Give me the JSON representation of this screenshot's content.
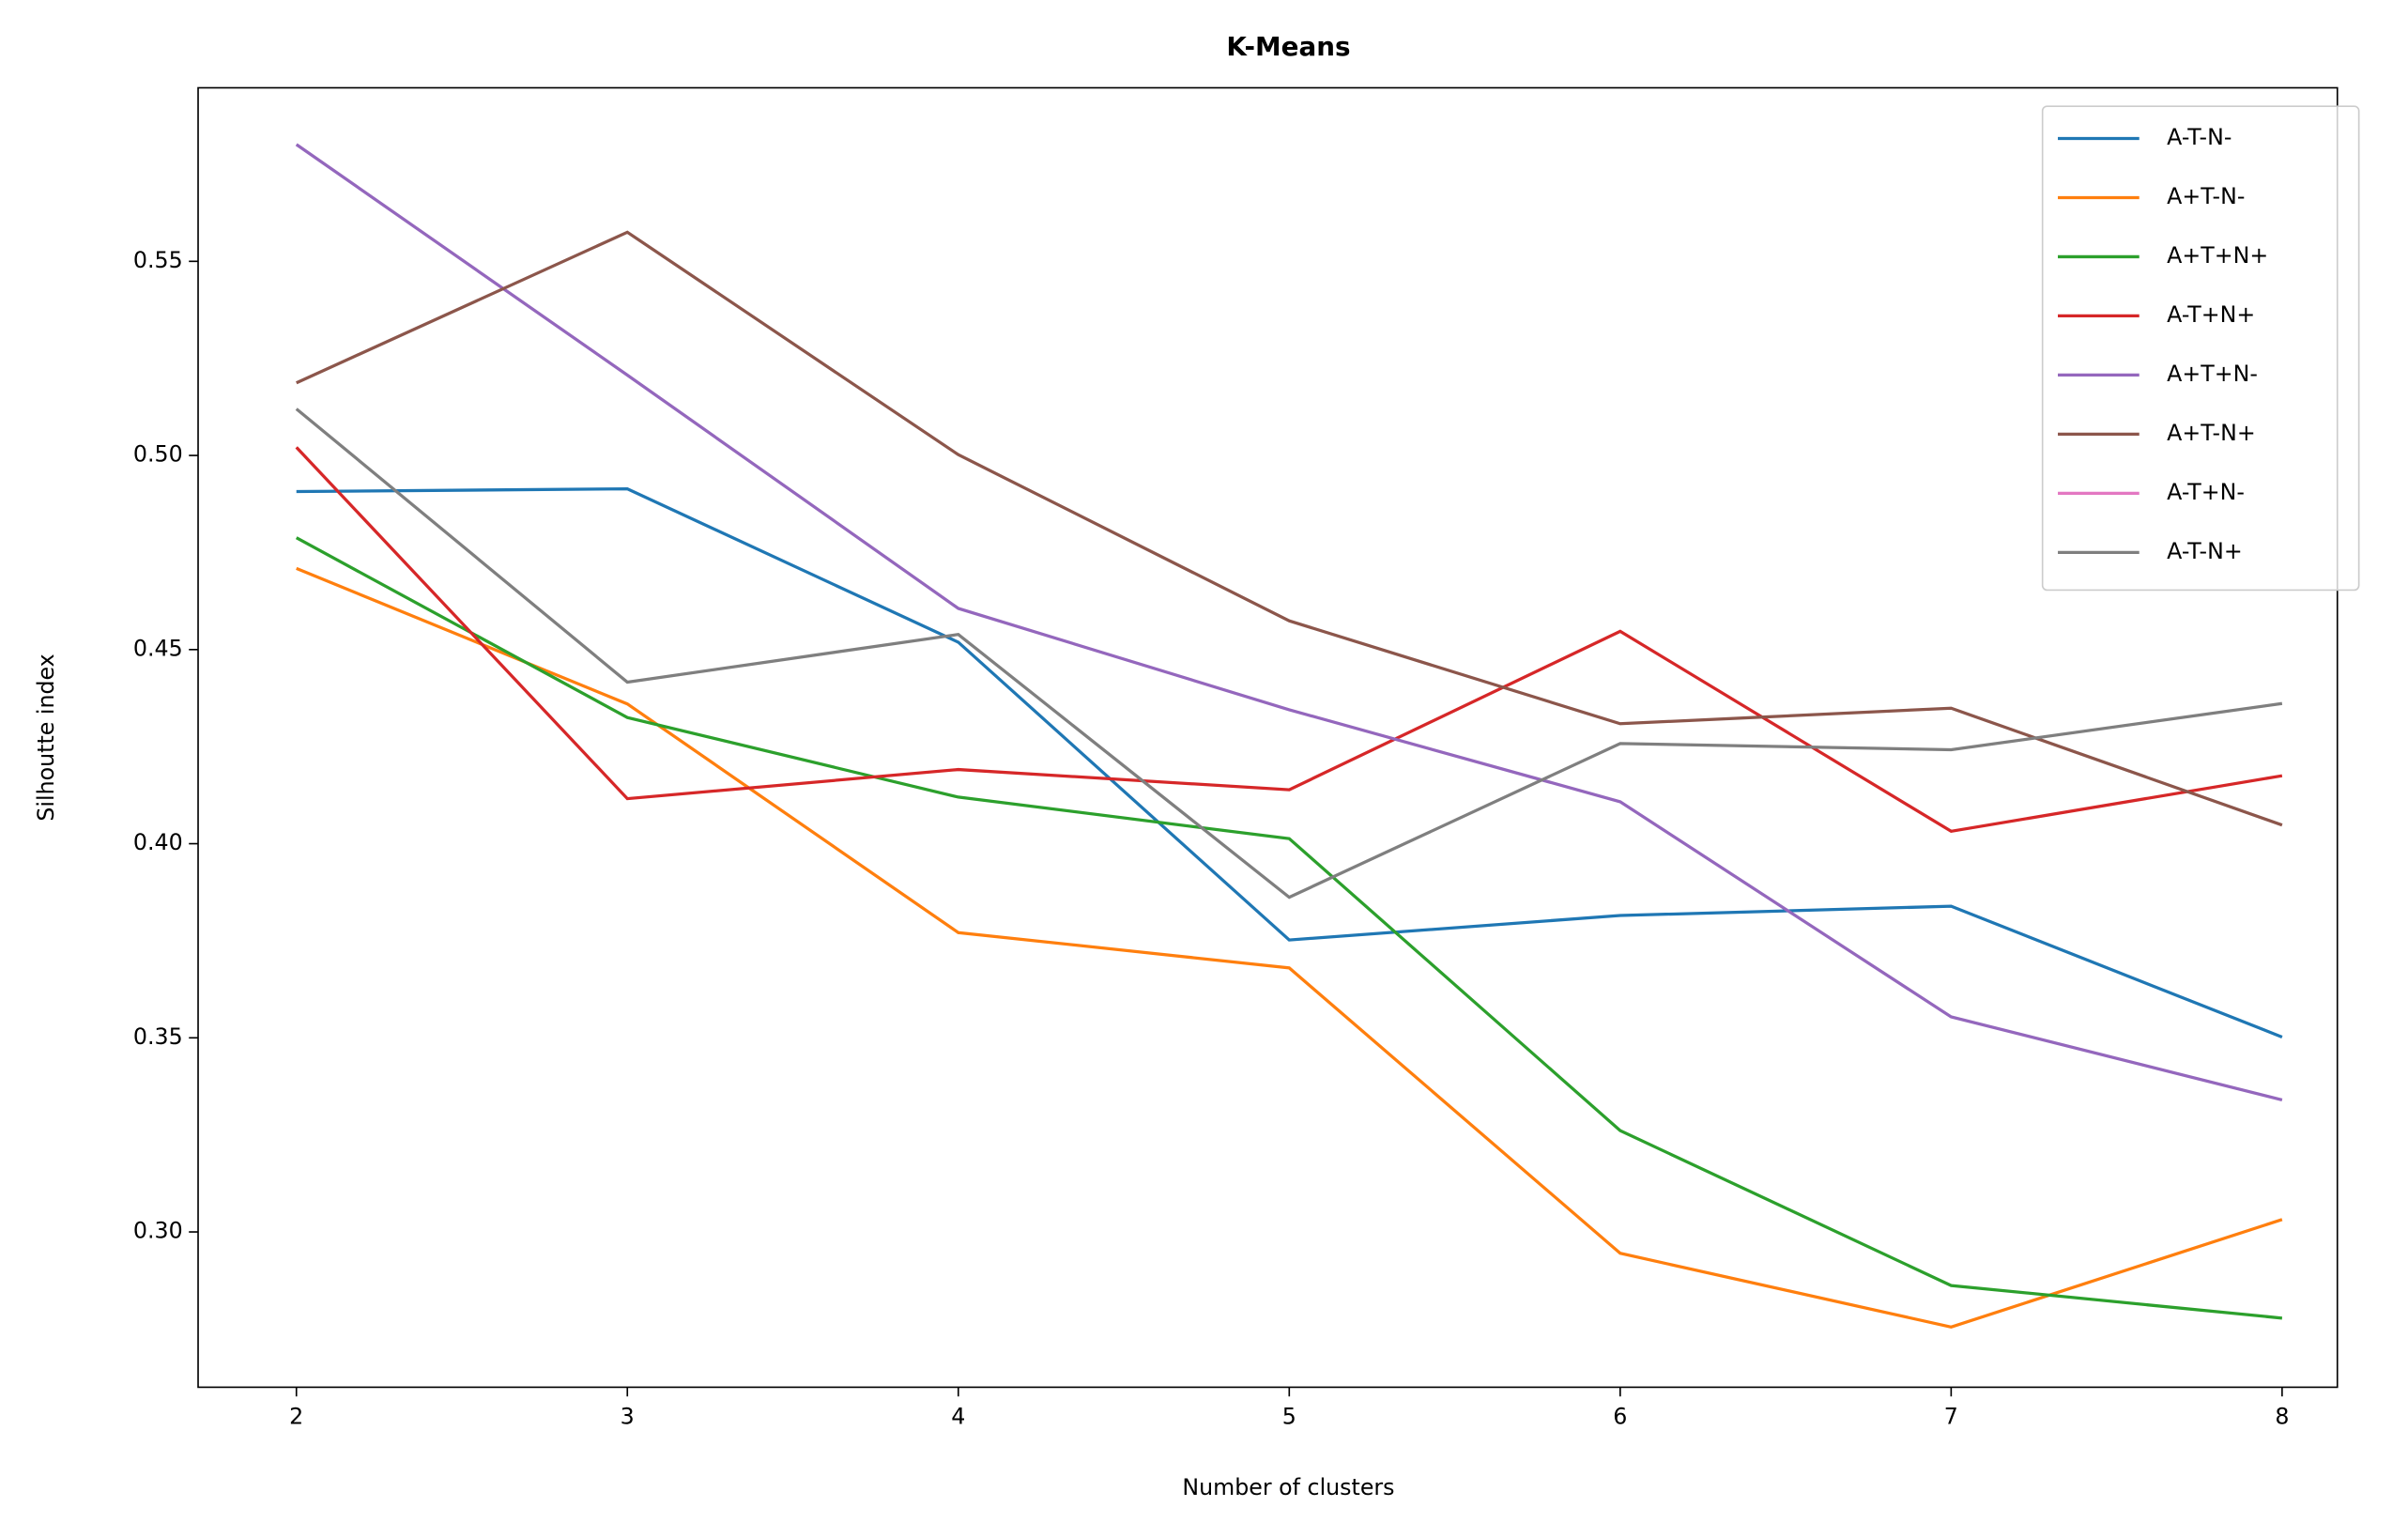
{
  "chart_data": {
    "type": "line",
    "title": "K-Means",
    "x_label": "Number of clusters",
    "y_label": "Silhoutte index",
    "x": [
      2,
      3,
      4,
      5,
      6,
      7,
      8
    ],
    "xlim": [
      1.703,
      8.167
    ],
    "xticks": [
      2,
      3,
      4,
      5,
      6,
      7,
      8
    ],
    "ylim": [
      0.26,
      0.5947
    ],
    "yticks": [
      {
        "value": 0.3,
        "label": "0.30"
      },
      0.35,
      {
        "value": 0.4,
        "label": "0.40"
      },
      0.45,
      {
        "value": 0.5,
        "label": "0.50"
      },
      0.55
    ],
    "legend": "upper right",
    "grid": false,
    "series": [
      {
        "name": "A-T-N-",
        "color": "#1f77b4",
        "values": [
          0.4907,
          0.4914,
          0.4519,
          0.3752,
          0.3815,
          0.3839,
          0.3502
        ]
      },
      {
        "name": "A+T-N-",
        "color": "#ff7f0e",
        "values": [
          0.4709,
          0.436,
          0.3771,
          0.368,
          0.2945,
          0.2755,
          0.3032
        ]
      },
      {
        "name": "A+T+N+",
        "color": "#2ca02c",
        "values": [
          0.4788,
          0.4325,
          0.412,
          0.4013,
          0.3261,
          0.2862,
          0.2778
        ]
      },
      {
        "name": "A-T+N+",
        "color": "#d62728",
        "values": [
          0.5021,
          0.4116,
          0.4191,
          0.4139,
          0.4547,
          0.4032,
          0.4175
        ]
      },
      {
        "name": "A+T+N-",
        "color": "#9467bd",
        "values": [
          0.5801,
          0.5207,
          0.4606,
          0.4345,
          0.4108,
          0.3554,
          0.334
        ]
      },
      {
        "name": "A+T-N+",
        "color": "#8c564b",
        "values": [
          0.5187,
          0.5575,
          0.5002,
          0.4574,
          0.4309,
          0.4349,
          0.4048
        ]
      },
      {
        "name": "A-T+N-",
        "color": "#e377c2",
        "values": [
          null,
          null,
          null,
          null,
          null,
          null,
          null
        ]
      },
      {
        "name": "A-T-N+",
        "color": "#7f7f7f",
        "values": [
          0.512,
          0.4416,
          0.4539,
          0.3862,
          0.4258,
          0.4242,
          0.4361
        ]
      }
    ]
  }
}
